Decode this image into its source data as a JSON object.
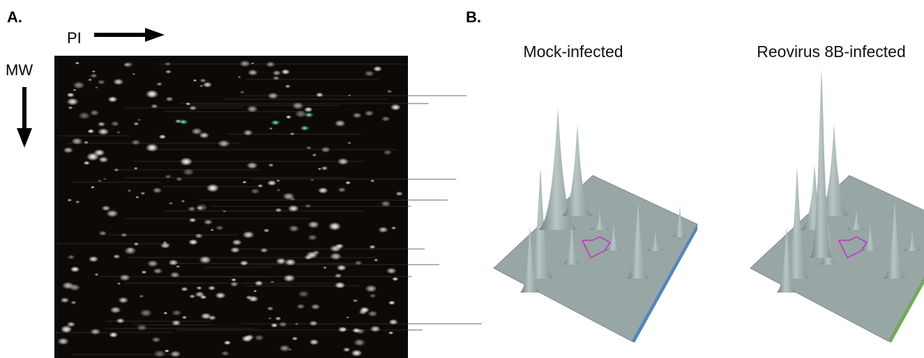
{
  "panel_a": {
    "label": "A.",
    "x_axis_label": "PI",
    "y_axis_label": "MW"
  },
  "panel_b": {
    "label": "B.",
    "plots": [
      {
        "title": "Mock-infected"
      },
      {
        "title": "Reovirus 8B-infected"
      }
    ]
  }
}
